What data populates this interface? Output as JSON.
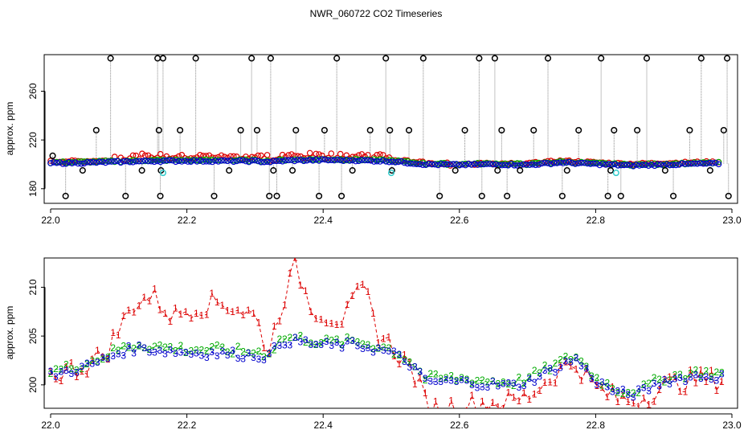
{
  "chart_data": [
    {
      "type": "scatter",
      "title": "NWR_060722  CO2 Timeseries",
      "ylabel": "approx. ppm",
      "xlabel": "",
      "xlim": [
        22.0,
        23.0
      ],
      "ylim": [
        168,
        290
      ],
      "x_ticks": [
        22.0,
        22.2,
        22.4,
        22.6,
        22.8,
        23.0
      ],
      "x_tick_labels": [
        "22.0",
        "22.2",
        "22.4",
        "22.6",
        "22.8",
        "23.0"
      ],
      "y_ticks": [
        180,
        220,
        260
      ],
      "y_tick_labels": [
        "180",
        "220",
        "260"
      ],
      "grid": false,
      "description_series": [
        {
          "name": "raw (grey dotted)",
          "color": "#999999"
        },
        {
          "name": "outliers (black)",
          "color": "#000000"
        },
        {
          "name": "cal (cyan)",
          "color": "#33cccc"
        },
        {
          "name": "1",
          "color": "#dd0000"
        },
        {
          "name": "2",
          "color": "#00aa00"
        },
        {
          "name": "3",
          "color": "#0000cc"
        }
      ],
      "baseline": {
        "x": [
          22.0,
          22.05,
          22.1,
          22.15,
          22.2,
          22.25,
          22.3,
          22.32,
          22.35,
          22.4,
          22.45,
          22.5,
          22.55,
          22.6,
          22.65,
          22.7,
          22.75,
          22.8,
          22.85,
          22.9,
          22.95,
          22.98
        ],
        "y": [
          201,
          201.3,
          202,
          202.7,
          202.8,
          202.7,
          202.6,
          202,
          203.2,
          203.5,
          203.3,
          202.5,
          200,
          199.6,
          200,
          199.5,
          201.5,
          200.2,
          199,
          199.7,
          200.4,
          200.6
        ]
      },
      "outliers": {
        "x": [
          22.003,
          22.022,
          22.047,
          22.067,
          22.088,
          22.11,
          22.134,
          22.157,
          22.159,
          22.161,
          22.162,
          22.165,
          22.19,
          22.213,
          22.24,
          22.262,
          22.279,
          22.295,
          22.303,
          22.321,
          22.323,
          22.327,
          22.332,
          22.355,
          22.36,
          22.394,
          22.402,
          22.42,
          22.427,
          22.443,
          22.469,
          22.492,
          22.498,
          22.501,
          22.526,
          22.547,
          22.571,
          22.594,
          22.608,
          22.629,
          22.633,
          22.652,
          22.656,
          22.662,
          22.67,
          22.689,
          22.709,
          22.73,
          22.751,
          22.758,
          22.775,
          22.808,
          22.818,
          22.822,
          22.827,
          22.837,
          22.861,
          22.875,
          22.902,
          22.914,
          22.938,
          22.955,
          22.968,
          22.988,
          22.993,
          22.995
        ],
        "y": [
          207,
          174,
          195,
          228,
          287,
          174,
          195,
          287,
          228,
          174,
          195,
          287,
          228,
          287,
          174,
          195,
          228,
          287,
          228,
          174,
          287,
          195,
          174,
          195,
          228,
          174,
          228,
          287,
          174,
          195,
          228,
          287,
          228,
          195,
          228,
          287,
          174,
          195,
          228,
          287,
          174,
          287,
          195,
          228,
          174,
          195,
          228,
          287,
          174,
          195,
          228,
          287,
          174,
          195,
          228,
          174,
          228,
          287,
          195,
          174,
          228,
          287,
          195,
          228,
          287,
          174
        ]
      },
      "cal": {
        "x": [
          22.165,
          22.5,
          22.83
        ],
        "y": [
          193,
          193,
          193
        ]
      }
    },
    {
      "type": "scatter",
      "title": "",
      "ylabel": "approx. ppm",
      "xlabel": "",
      "xlim": [
        22.0,
        23.0
      ],
      "ylim": [
        197.6,
        213
      ],
      "x_ticks": [
        22.0,
        22.2,
        22.4,
        22.6,
        22.8,
        23.0
      ],
      "x_tick_labels": [
        "22.0",
        "22.2",
        "22.4",
        "22.6",
        "22.8",
        "23.0"
      ],
      "y_ticks": [
        200,
        205,
        210
      ],
      "y_tick_labels": [
        "200",
        "205",
        "210"
      ],
      "grid": false,
      "series": [
        {
          "name": "1",
          "marker": "1",
          "color": "#dd0000",
          "x_start": 22.0,
          "x_end": 22.985
        },
        {
          "name": "2",
          "marker": "2",
          "color": "#00aa00",
          "x_start": 22.0,
          "x_end": 22.985
        },
        {
          "name": "3",
          "marker": "3",
          "color": "#0000cc",
          "x_start": 22.0,
          "x_end": 22.985
        }
      ],
      "baseline": {
        "x": [
          22.0,
          22.02,
          22.05,
          22.08,
          22.1,
          22.13,
          22.15,
          22.2,
          22.25,
          22.3,
          22.32,
          22.34,
          22.37,
          22.4,
          22.45,
          22.5,
          22.53,
          22.55,
          22.58,
          22.6,
          22.65,
          22.68,
          22.7,
          22.75,
          22.77,
          22.8,
          22.83,
          22.85,
          22.87,
          22.9,
          22.95,
          22.98
        ],
        "y": [
          201,
          201.3,
          201.8,
          202.6,
          203.3,
          203.8,
          203.6,
          203.3,
          203.2,
          203,
          202.9,
          204.5,
          204.4,
          204.0,
          204.1,
          203.3,
          202.0,
          200.3,
          200.3,
          200.3,
          200.0,
          199.9,
          200.3,
          202.0,
          202.7,
          200.4,
          199.2,
          199.0,
          199.3,
          200.4,
          200.9,
          200.8
        ]
      },
      "red_offsets": {
        "x": [
          22.0,
          22.05,
          22.08,
          22.1,
          22.12,
          22.15,
          22.18,
          22.2,
          22.23,
          22.25,
          22.28,
          22.3,
          22.32,
          22.34,
          22.36,
          22.38,
          22.4,
          22.43,
          22.46,
          22.48,
          22.5,
          22.53,
          22.56,
          22.6,
          22.65,
          22.7,
          22.75,
          22.8,
          22.85,
          22.9,
          22.95,
          22.98
        ],
        "y": [
          0,
          0.1,
          0.6,
          2.3,
          4.5,
          5.5,
          3.5,
          4.5,
          5.0,
          5.3,
          4.6,
          4.0,
          0.5,
          4.0,
          7.8,
          4.0,
          3.2,
          2.6,
          6.0,
          1.8,
          0.6,
          -0.3,
          -2.8,
          -2.4,
          -1.8,
          -1.5,
          -0.3,
          -0.7,
          -0.6,
          -0.5,
          -0.3,
          -0.3
        ]
      }
    }
  ]
}
